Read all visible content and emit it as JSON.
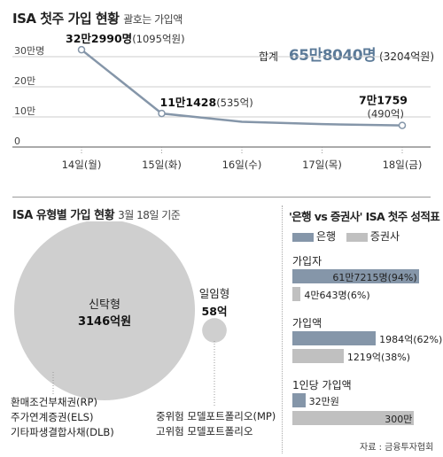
{
  "top": {
    "title": "ISA 첫주 가입 현황",
    "note": "괄호는 가입액",
    "total_label": "합계",
    "total_value": "65만8040명",
    "total_amount": "(3204억원)"
  },
  "chart_data": [
    {
      "type": "line",
      "title": "ISA 첫주 가입 현황",
      "x": [
        "14일(월)",
        "15일(화)",
        "16일(수)",
        "17일(목)",
        "18일(금)"
      ],
      "y_ticks": [
        "0",
        "10만",
        "20만",
        "30만명"
      ],
      "ylim": [
        0,
        340000
      ],
      "series": [
        {
          "values": [
            322990,
            111428,
            84000,
            76000,
            71759
          ]
        }
      ],
      "annotations": [
        {
          "index": 0,
          "bold": "32만2990명",
          "normal": "(1095억원)"
        },
        {
          "index": 1,
          "bold": "11만1428",
          "normal": "(535억)"
        },
        {
          "index": 4,
          "bold": "7만1759",
          "normal": "(490억)"
        }
      ],
      "grid": true,
      "line_color": "#8596a9"
    },
    {
      "type": "bubble",
      "title": "ISA 유형별 가입 현황",
      "subtitle": "3월 18일 기준",
      "items": [
        {
          "name": "신탁형",
          "value": "3146억원",
          "amount": 3146
        },
        {
          "name": "일임형",
          "value": "58억",
          "amount": 58
        }
      ]
    },
    {
      "type": "bar",
      "title": "'은행 vs 증권사' ISA 첫주 성적표",
      "legend": [
        "은행",
        "증권사"
      ],
      "colors": [
        "#8596a9",
        "#c0c0c0"
      ],
      "groups": [
        {
          "name": "가입자",
          "bank": {
            "value": 617215,
            "label": "61만7215명(94%)"
          },
          "securities": {
            "value": 40643,
            "label": "4만643명(6%)"
          }
        },
        {
          "name": "가입액",
          "bank": {
            "value": 1984,
            "label": "1984억(62%)"
          },
          "securities": {
            "value": 1219,
            "label": "1219억(38%)"
          }
        },
        {
          "name": "1인당 가입액",
          "bank": {
            "value": 32,
            "label": "32만원"
          },
          "securities": {
            "value": 300,
            "label": "300만"
          }
        }
      ]
    }
  ],
  "bubble_notes": {
    "left": [
      "환매조건부채권(RP)",
      "주가연계증권(ELS)",
      "기타파생결합사채(DLB)"
    ],
    "right": [
      "중위험 모델포트폴리오(MP)",
      "고위험 모델포트폴리오"
    ]
  },
  "source": "자료 : 금융투자협회"
}
